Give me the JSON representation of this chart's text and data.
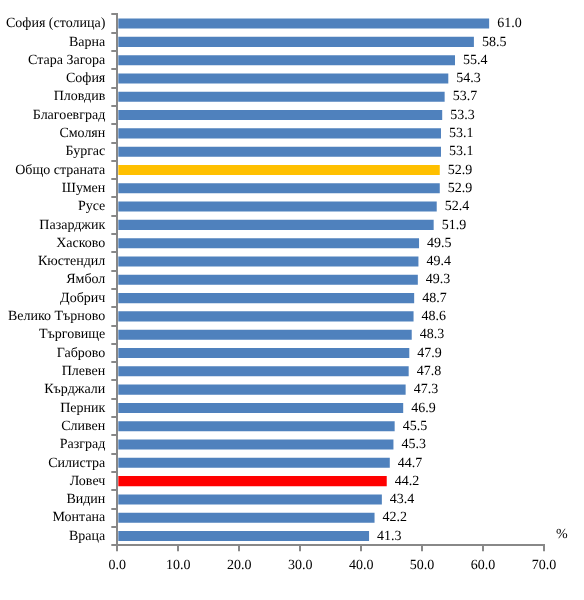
{
  "chart_data": {
    "type": "bar",
    "orientation": "horizontal",
    "xlabel": "%",
    "categories": [
      "София (столица)",
      "Варна",
      "Стара Загора",
      "София",
      "Пловдив",
      "Благоевград",
      "Смолян",
      "Бургас",
      "Общо страната",
      "Шумен",
      "Русе",
      "Пазарджик",
      "Хасково",
      "Кюстендил",
      "Ямбол",
      "Добрич",
      "Велико Търново",
      "Търговище",
      "Габрово",
      "Плевен",
      "Кърджали",
      "Перник",
      "Сливен",
      "Разград",
      "Силистра",
      "Ловеч",
      "Видин",
      "Монтана",
      "Враца"
    ],
    "values": [
      61.0,
      58.5,
      55.4,
      54.3,
      53.7,
      53.3,
      53.1,
      53.1,
      52.9,
      52.9,
      52.4,
      51.9,
      49.5,
      49.4,
      49.3,
      48.7,
      48.6,
      48.3,
      47.9,
      47.8,
      47.3,
      46.9,
      45.5,
      45.3,
      44.7,
      44.2,
      43.4,
      42.2,
      41.3
    ],
    "value_labels": [
      "61.0",
      "58.5",
      "55.4",
      "54.3",
      "53.7",
      "53.3",
      "53.1",
      "53.1",
      "52.9",
      "52.9",
      "52.4",
      "51.9",
      "49.5",
      "49.4",
      "49.3",
      "48.7",
      "48.6",
      "48.3",
      "47.9",
      "47.8",
      "47.3",
      "46.9",
      "45.5",
      "45.3",
      "44.7",
      "44.2",
      "43.4",
      "42.2",
      "41.3"
    ],
    "colors": [
      "#4f81bd",
      "#4f81bd",
      "#4f81bd",
      "#4f81bd",
      "#4f81bd",
      "#4f81bd",
      "#4f81bd",
      "#4f81bd",
      "#ffc000",
      "#4f81bd",
      "#4f81bd",
      "#4f81bd",
      "#4f81bd",
      "#4f81bd",
      "#4f81bd",
      "#4f81bd",
      "#4f81bd",
      "#4f81bd",
      "#4f81bd",
      "#4f81bd",
      "#4f81bd",
      "#4f81bd",
      "#4f81bd",
      "#4f81bd",
      "#4f81bd",
      "#ff0000",
      "#4f81bd",
      "#4f81bd",
      "#4f81bd"
    ],
    "xlim": [
      0,
      70
    ],
    "xticks": [
      {
        "value": 0,
        "label": "0.0"
      },
      {
        "value": 10,
        "label": "10.0"
      },
      {
        "value": 20,
        "label": "20.0"
      },
      {
        "value": 30,
        "label": "30.0"
      },
      {
        "value": 40,
        "label": "40.0"
      },
      {
        "value": 50,
        "label": "50.0"
      },
      {
        "value": 60,
        "label": "60.0"
      },
      {
        "value": 70,
        "label": "70.0"
      }
    ],
    "grid": false,
    "legend": false
  }
}
